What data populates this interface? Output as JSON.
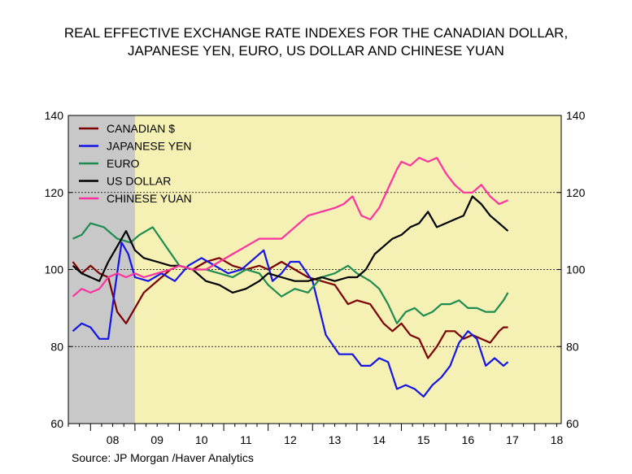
{
  "title": {
    "line1": "REAL EFFECTIVE EXCHANGE RATE INDEXES FOR THE CANADIAN DOLLAR,",
    "line2": "JAPANESE YEN, EURO, US DOLLAR AND CHINESE YUAN"
  },
  "source": "Source:  JP Morgan /Haver Analytics",
  "colors": {
    "plot_bg": "#f5f0b4",
    "recession": "#c8c8c8",
    "canadian": "#7b0000",
    "yen": "#1414e6",
    "euro": "#1e8c50",
    "usd": "#000000",
    "yuan": "#ff32a0"
  },
  "chart_data": {
    "type": "line",
    "ylim": [
      60,
      140
    ],
    "xlim": [
      2007.5,
      2018.6
    ],
    "y_ticks": [
      "60",
      "80",
      "100",
      "120",
      "140"
    ],
    "x_tick_labels": [
      "08",
      "09",
      "10",
      "11",
      "12",
      "13",
      "14",
      "15",
      "16",
      "17",
      "18"
    ],
    "gridlines_y": [
      80,
      100,
      120
    ],
    "shaded_region": {
      "label": "recession",
      "x": [
        2007.5,
        2009.0
      ]
    },
    "legend_position": "top-left",
    "series": [
      {
        "name": "CANADIAN $",
        "color_key": "canadian",
        "x": [
          2007.6,
          2007.8,
          2008.0,
          2008.2,
          2008.4,
          2008.6,
          2008.8,
          2009.0,
          2009.2,
          2009.4,
          2009.6,
          2009.8,
          2010.0,
          2010.3,
          2010.6,
          2010.9,
          2011.2,
          2011.5,
          2011.8,
          2012.0,
          2012.3,
          2012.6,
          2012.9,
          2013.2,
          2013.5,
          2013.8,
          2014.0,
          2014.3,
          2014.6,
          2014.8,
          2015.0,
          2015.2,
          2015.4,
          2015.6,
          2015.8,
          2016.0,
          2016.2,
          2016.4,
          2016.6,
          2016.8,
          2017.0,
          2017.2,
          2017.3,
          2017.4
        ],
        "values": [
          102,
          99,
          101,
          99,
          98,
          89,
          86,
          90,
          94,
          96,
          98,
          100,
          101,
          100,
          102,
          103,
          101,
          100,
          101,
          100,
          102,
          100,
          98,
          97,
          96,
          91,
          92,
          91,
          86,
          84,
          86,
          83,
          82,
          77,
          80,
          84,
          84,
          82,
          83,
          82,
          81,
          84,
          85,
          85
        ]
      },
      {
        "name": "JAPANESE YEN",
        "color_key": "yen",
        "x": [
          2007.6,
          2007.8,
          2008.0,
          2008.2,
          2008.4,
          2008.55,
          2008.7,
          2008.85,
          2009.0,
          2009.3,
          2009.6,
          2009.9,
          2010.2,
          2010.5,
          2010.8,
          2011.1,
          2011.4,
          2011.7,
          2011.9,
          2012.1,
          2012.3,
          2012.5,
          2012.7,
          2013.0,
          2013.3,
          2013.6,
          2013.9,
          2014.1,
          2014.3,
          2014.5,
          2014.7,
          2014.9,
          2015.1,
          2015.3,
          2015.5,
          2015.7,
          2015.9,
          2016.1,
          2016.3,
          2016.5,
          2016.7,
          2016.9,
          2017.1,
          2017.3,
          2017.4
        ],
        "values": [
          84,
          86,
          85,
          82,
          82,
          95,
          107,
          104,
          98,
          97,
          99,
          97,
          101,
          103,
          101,
          99,
          100,
          103,
          105,
          97,
          99,
          102,
          102,
          97,
          83,
          78,
          78,
          75,
          75,
          77,
          76,
          69,
          70,
          69,
          67,
          70,
          72,
          75,
          81,
          84,
          82,
          75,
          77,
          75,
          76
        ]
      },
      {
        "name": "EURO",
        "color_key": "euro",
        "x": [
          2007.6,
          2007.8,
          2008.0,
          2008.3,
          2008.6,
          2008.9,
          2009.1,
          2009.4,
          2009.7,
          2010.0,
          2010.3,
          2010.6,
          2010.9,
          2011.2,
          2011.5,
          2011.8,
          2012.0,
          2012.3,
          2012.6,
          2012.9,
          2013.2,
          2013.5,
          2013.8,
          2014.0,
          2014.3,
          2014.5,
          2014.7,
          2014.9,
          2015.1,
          2015.3,
          2015.5,
          2015.7,
          2015.9,
          2016.1,
          2016.3,
          2016.5,
          2016.7,
          2016.9,
          2017.1,
          2017.3,
          2017.4
        ],
        "values": [
          108,
          109,
          112,
          111,
          108,
          107,
          109,
          111,
          106,
          101,
          100,
          100,
          99,
          98,
          100,
          99,
          96,
          93,
          95,
          94,
          98,
          99,
          101,
          99,
          97,
          95,
          91,
          86,
          89,
          90,
          88,
          89,
          91,
          91,
          92,
          90,
          90,
          89,
          89,
          92,
          94
        ]
      },
      {
        "name": "US DOLLAR",
        "color_key": "usd",
        "x": [
          2007.6,
          2007.8,
          2008.0,
          2008.2,
          2008.4,
          2008.6,
          2008.8,
          2009.0,
          2009.2,
          2009.5,
          2009.8,
          2010.0,
          2010.3,
          2010.6,
          2010.9,
          2011.2,
          2011.5,
          2011.8,
          2012.0,
          2012.3,
          2012.6,
          2012.9,
          2013.2,
          2013.5,
          2013.8,
          2014.0,
          2014.2,
          2014.4,
          2014.6,
          2014.8,
          2015.0,
          2015.2,
          2015.4,
          2015.6,
          2015.8,
          2016.0,
          2016.2,
          2016.4,
          2016.6,
          2016.8,
          2017.0,
          2017.2,
          2017.4
        ],
        "values": [
          101,
          99,
          98,
          97,
          102,
          106,
          110,
          105,
          103,
          102,
          101,
          101,
          100,
          97,
          96,
          94,
          95,
          97,
          99,
          98,
          97,
          97,
          98,
          97,
          98,
          98,
          100,
          104,
          106,
          108,
          109,
          111,
          112,
          115,
          111,
          112,
          113,
          114,
          119,
          117,
          114,
          112,
          110
        ]
      },
      {
        "name": "CHINESE YUAN",
        "color_key": "yuan",
        "x": [
          2007.6,
          2007.8,
          2008.0,
          2008.2,
          2008.4,
          2008.6,
          2008.8,
          2009.0,
          2009.2,
          2009.5,
          2009.8,
          2010.0,
          2010.3,
          2010.6,
          2010.9,
          2011.2,
          2011.5,
          2011.8,
          2012.0,
          2012.3,
          2012.6,
          2012.9,
          2013.2,
          2013.5,
          2013.7,
          2013.9,
          2014.1,
          2014.3,
          2014.5,
          2014.7,
          2014.9,
          2015.0,
          2015.2,
          2015.4,
          2015.6,
          2015.8,
          2016.0,
          2016.2,
          2016.4,
          2016.6,
          2016.8,
          2017.0,
          2017.2,
          2017.4
        ],
        "values": [
          93,
          95,
          94,
          95,
          98,
          99,
          98,
          99,
          98,
          99,
          100,
          101,
          100,
          100,
          102,
          104,
          106,
          108,
          108,
          108,
          111,
          114,
          115,
          116,
          117,
          119,
          114,
          113,
          116,
          121,
          126,
          128,
          127,
          129,
          128,
          129,
          125,
          122,
          120,
          120,
          122,
          119,
          117,
          118
        ]
      }
    ]
  }
}
